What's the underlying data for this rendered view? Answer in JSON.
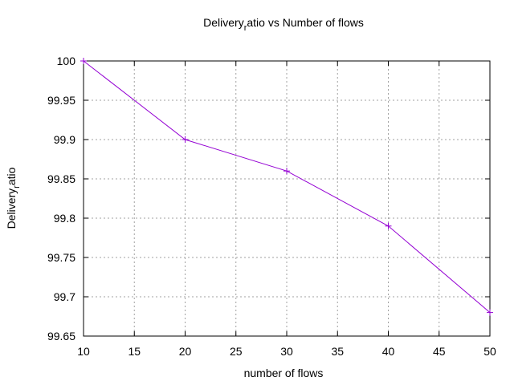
{
  "chart_data": {
    "type": "line",
    "title": {
      "pre": "Delivery",
      "sub": "r",
      "post": "atio vs Number of flows"
    },
    "xlabel": "number of flows",
    "ylabel": {
      "pre": "Delivery",
      "sub": "r",
      "post": "atio"
    },
    "xlim": [
      10,
      50
    ],
    "ylim": [
      99.65,
      100
    ],
    "x_ticks": [
      "10",
      "15",
      "20",
      "25",
      "30",
      "35",
      "40",
      "45",
      "50"
    ],
    "y_ticks": [
      "99.65",
      "99.7",
      "99.75",
      "99.8",
      "99.85",
      "99.9",
      "99.95",
      "100"
    ],
    "grid": true,
    "series": [
      {
        "x": [
          10,
          20,
          30,
          40,
          50
        ],
        "y": [
          100,
          99.9,
          99.86,
          99.79,
          99.68
        ],
        "color": "#9400d3",
        "marker": "plus"
      }
    ]
  }
}
